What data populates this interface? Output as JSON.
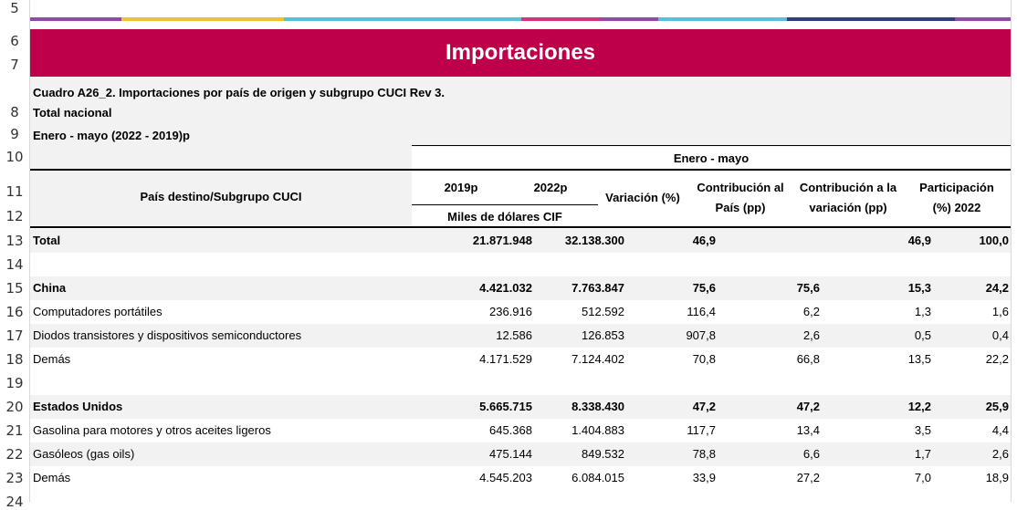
{
  "colors": {
    "banner": "#bd0049",
    "stripes": [
      "#8e4ea0",
      "#e8c43a",
      "#5bc0d4",
      "#d6327a",
      "#8e4ea0",
      "#5bc0d4",
      "#2f3f7a",
      "#8e4ea0"
    ]
  },
  "row_numbers": [
    "5",
    "6",
    "7",
    "8",
    "9",
    "10",
    "11",
    "12",
    "13",
    "14",
    "15",
    "16",
    "17",
    "18",
    "19",
    "20",
    "21",
    "22",
    "23",
    "24"
  ],
  "banner_title": "Importaciones",
  "header": {
    "line1": "Cuadro A26_2. Importaciones por país de origen y subgrupo CUCI Rev 3.",
    "line2": "Total nacional",
    "line3": "Enero - mayo (2022 - 2019)p"
  },
  "table_header": {
    "period": "Enero - mayo",
    "country_col": "País destino/Subgrupo CUCI",
    "year1": "2019p",
    "year2": "2022p",
    "units": "Miles de dólares CIF",
    "variation": "Variación (%)",
    "contrib_country_1": "Contribución al",
    "contrib_country_2": "País (pp)",
    "contrib_var_1": "Contribución a la",
    "contrib_var_2": "variación (pp)",
    "share_1": "Participación",
    "share_2": "(%) 2022"
  },
  "rows": [
    {
      "name": "Total",
      "y2019": "21.871.948",
      "y2022": "32.138.300",
      "var": "46,9",
      "cpais": "",
      "cvar": "46,9",
      "part": "100,0"
    },
    {
      "name": "",
      "y2019": "",
      "y2022": "",
      "var": "",
      "cpais": "",
      "cvar": "",
      "part": ""
    },
    {
      "name": "China",
      "y2019": "4.421.032",
      "y2022": "7.763.847",
      "var": "75,6",
      "cpais": "75,6",
      "cvar": "15,3",
      "part": "24,2"
    },
    {
      "name": "Computadores portátiles",
      "y2019": "236.916",
      "y2022": "512.592",
      "var": "116,4",
      "cpais": "6,2",
      "cvar": "1,3",
      "part": "1,6"
    },
    {
      "name": "Diodos transistores y dispositivos semiconductores",
      "y2019": "12.586",
      "y2022": "126.853",
      "var": "907,8",
      "cpais": "2,6",
      "cvar": "0,5",
      "part": "0,4"
    },
    {
      "name": "Demás",
      "y2019": "4.171.529",
      "y2022": "7.124.402",
      "var": "70,8",
      "cpais": "66,8",
      "cvar": "13,5",
      "part": "22,2"
    },
    {
      "name": "",
      "y2019": "",
      "y2022": "",
      "var": "",
      "cpais": "",
      "cvar": "",
      "part": ""
    },
    {
      "name": "Estados Unidos",
      "y2019": "5.665.715",
      "y2022": "8.338.430",
      "var": "47,2",
      "cpais": "47,2",
      "cvar": "12,2",
      "part": "25,9"
    },
    {
      "name": "Gasolina para motores y otros aceites ligeros",
      "y2019": "645.368",
      "y2022": "1.404.883",
      "var": "117,7",
      "cpais": "13,4",
      "cvar": "3,5",
      "part": "4,4"
    },
    {
      "name": "Gasóleos (gas oils)",
      "y2019": "475.144",
      "y2022": "849.532",
      "var": "78,8",
      "cpais": "6,6",
      "cvar": "1,7",
      "part": "2,6"
    },
    {
      "name": "Demás",
      "y2019": "4.545.203",
      "y2022": "6.084.015",
      "var": "33,9",
      "cpais": "27,2",
      "cvar": "7,0",
      "part": "18,9"
    }
  ]
}
